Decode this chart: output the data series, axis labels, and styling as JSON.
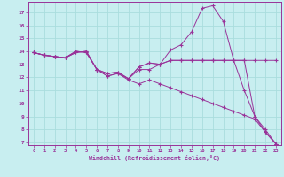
{
  "xlabel": "Windchill (Refroidissement éolien,°C)",
  "bg_color": "#c8eef0",
  "line_color": "#993399",
  "grid_color": "#aadddd",
  "xlim": [
    -0.5,
    23.5
  ],
  "ylim": [
    6.8,
    17.8
  ],
  "xticks": [
    0,
    1,
    2,
    3,
    4,
    5,
    6,
    7,
    8,
    9,
    10,
    11,
    12,
    13,
    14,
    15,
    16,
    17,
    18,
    19,
    20,
    21,
    22,
    23
  ],
  "yticks": [
    7,
    8,
    9,
    10,
    11,
    12,
    13,
    14,
    15,
    16,
    17
  ],
  "series1_x": [
    0,
    1,
    2,
    3,
    4,
    5,
    6,
    7,
    8,
    9,
    10,
    11,
    12,
    13,
    14,
    15,
    16,
    17,
    18,
    19,
    20,
    21,
    22,
    23
  ],
  "series1_y": [
    13.9,
    13.7,
    13.6,
    13.5,
    13.9,
    14.0,
    12.6,
    12.1,
    12.3,
    11.8,
    11.5,
    11.8,
    11.5,
    11.2,
    10.9,
    10.6,
    10.3,
    10.0,
    9.7,
    9.4,
    9.1,
    8.8,
    7.8,
    6.9
  ],
  "series2_x": [
    0,
    1,
    2,
    3,
    4,
    5,
    6,
    7,
    8,
    9,
    10,
    11,
    12,
    13,
    14,
    15,
    16,
    17,
    18,
    19,
    20,
    21,
    22,
    23
  ],
  "series2_y": [
    13.9,
    13.7,
    13.6,
    13.5,
    14.0,
    13.9,
    12.6,
    12.3,
    12.4,
    11.9,
    12.8,
    13.1,
    13.0,
    13.3,
    13.3,
    13.3,
    13.3,
    13.3,
    13.3,
    13.3,
    13.3,
    13.3,
    13.3,
    13.3
  ],
  "series3_x": [
    0,
    1,
    2,
    3,
    4,
    5,
    6,
    7,
    8,
    9,
    10,
    11,
    12,
    13,
    14,
    15,
    16,
    17,
    18,
    19,
    20,
    21,
    22,
    23
  ],
  "series3_y": [
    13.9,
    13.7,
    13.6,
    13.5,
    13.9,
    14.0,
    12.6,
    12.1,
    12.3,
    11.9,
    12.6,
    12.6,
    13.0,
    14.1,
    14.5,
    15.5,
    17.3,
    17.5,
    16.3,
    13.3,
    11.0,
    9.0,
    7.8,
    6.9
  ],
  "series4_x": [
    0,
    1,
    2,
    3,
    4,
    5,
    6,
    7,
    8,
    9,
    10,
    11,
    12,
    13,
    14,
    15,
    16,
    17,
    18,
    19,
    20,
    21,
    22,
    23
  ],
  "series4_y": [
    13.9,
    13.7,
    13.6,
    13.5,
    14.0,
    13.9,
    12.6,
    12.3,
    12.4,
    11.9,
    12.8,
    13.1,
    13.0,
    13.3,
    13.3,
    13.3,
    13.3,
    13.3,
    13.3,
    13.3,
    13.3,
    9.0,
    8.0,
    6.9
  ]
}
